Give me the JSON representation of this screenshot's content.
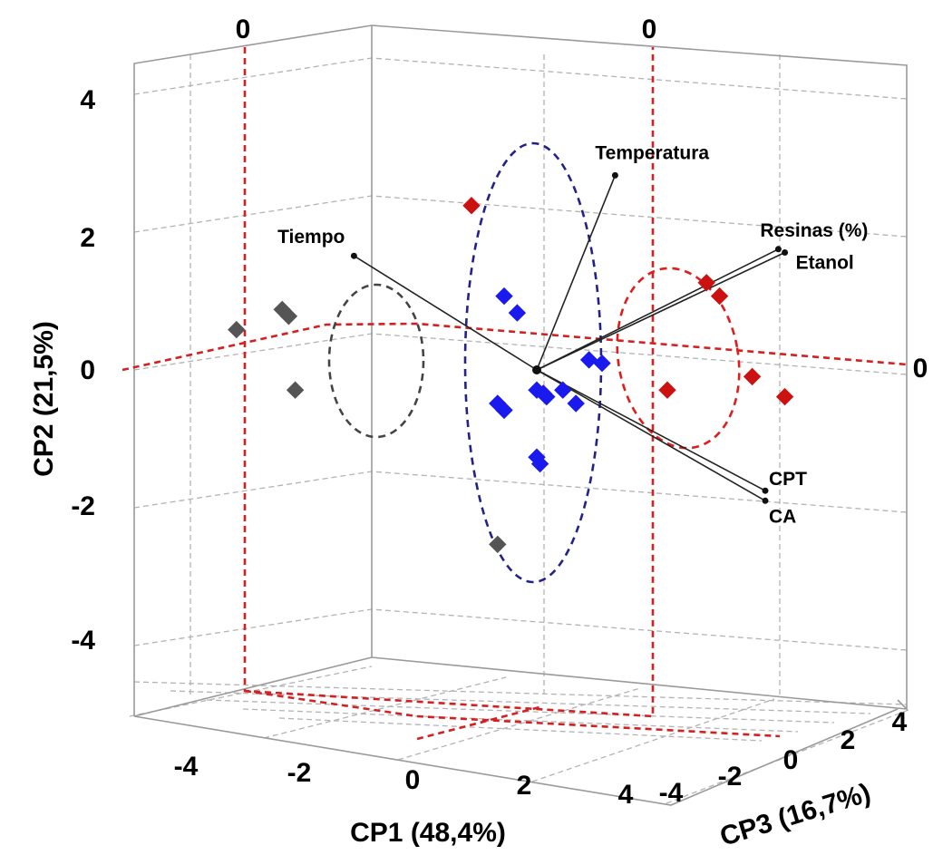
{
  "chart_data": {
    "type": "scatter",
    "title": "",
    "xlabel": "CP1 (48,4%)",
    "ylabel": "CP2 (21,5%)",
    "zlabel": "CP3 (16,7%)",
    "x_ticks": [
      "-4",
      "-2",
      "0",
      "2",
      "4"
    ],
    "y_ticks": [
      "4",
      "2",
      "0",
      "-2",
      "-4"
    ],
    "z_ticks": [
      "-4",
      "-2",
      "0",
      "2",
      "4"
    ],
    "zero_labels": [
      "0",
      "0",
      "0"
    ],
    "grid": true,
    "series": [
      {
        "color": "#555555",
        "points": [
          {
            "cp1": -4.6,
            "cp2": 0.6
          },
          {
            "cp1": -3.9,
            "cp2": 0.9
          },
          {
            "cp1": -3.8,
            "cp2": 0.8
          },
          {
            "cp1": -3.7,
            "cp2": -0.3
          },
          {
            "cp1": -0.6,
            "cp2": -2.6
          }
        ]
      },
      {
        "color": "#1a1aee",
        "points": [
          {
            "cp1": -0.5,
            "cp2": 1.1
          },
          {
            "cp1": -0.3,
            "cp2": 0.85
          },
          {
            "cp1": -0.6,
            "cp2": -0.5
          },
          {
            "cp1": -0.5,
            "cp2": -0.6
          },
          {
            "cp1": 0.0,
            "cp2": -0.3
          },
          {
            "cp1": 0.1,
            "cp2": -0.35
          },
          {
            "cp1": 0.15,
            "cp2": -0.4
          },
          {
            "cp1": 0.4,
            "cp2": -0.3
          },
          {
            "cp1": 0.6,
            "cp2": -0.5
          },
          {
            "cp1": 0.8,
            "cp2": 0.15
          },
          {
            "cp1": 1.0,
            "cp2": 0.1
          },
          {
            "cp1": 0.0,
            "cp2": -1.3
          },
          {
            "cp1": 0.05,
            "cp2": -1.4
          }
        ]
      },
      {
        "color": "#cc1111",
        "points": [
          {
            "cp1": -1.0,
            "cp2": 2.45
          },
          {
            "cp1": 2.6,
            "cp2": 1.3
          },
          {
            "cp1": 2.8,
            "cp2": 1.1
          },
          {
            "cp1": 2.0,
            "cp2": -0.3
          },
          {
            "cp1": 3.3,
            "cp2": -0.1
          },
          {
            "cp1": 3.8,
            "cp2": -0.4
          }
        ]
      }
    ],
    "loadings": [
      {
        "name": "Temperatura",
        "cp1": 1.2,
        "cp2": 2.9
      },
      {
        "name": "Resinas (%)",
        "cp1": 3.7,
        "cp2": 1.8
      },
      {
        "name": "Etanol",
        "cp1": 3.8,
        "cp2": 1.75
      },
      {
        "name": "Tiempo",
        "cp1": -2.8,
        "cp2": 1.7
      },
      {
        "name": "CPT",
        "cp1": 3.5,
        "cp2": -1.8
      },
      {
        "name": "CA",
        "cp1": 3.5,
        "cp2": -1.95
      }
    ],
    "ellipses": [
      {
        "color": "#444444",
        "center_cp1": -4.0,
        "center_cp2": 0.3
      },
      {
        "color": "#22228a",
        "center_cp1": 0.0,
        "center_cp2": 0.0
      },
      {
        "color": "#e01c1c",
        "center_cp1": 3.0,
        "center_cp2": 0.2
      }
    ]
  }
}
